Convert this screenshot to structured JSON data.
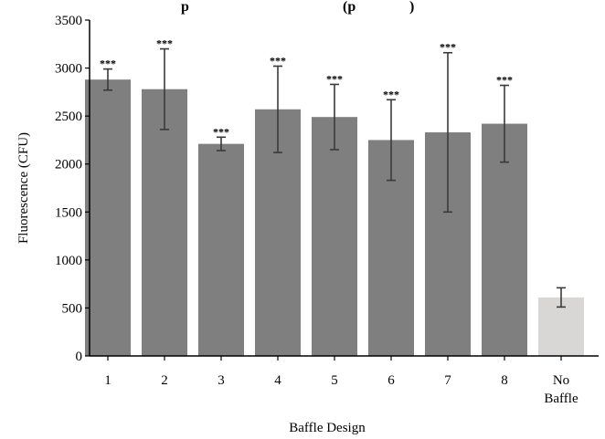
{
  "chart_data": {
    "type": "bar",
    "title_fragment_left": "p",
    "title_fragment_right": "(p",
    "title_fragment_tail": ")",
    "xlabel": "Baffle Design",
    "ylabel": "Fluorescence (CFU)",
    "ylim": [
      0,
      3500
    ],
    "yticks": [
      "0",
      "500",
      "1000",
      "1500",
      "2000",
      "2500",
      "3000",
      "3500"
    ],
    "grid": false,
    "legend": "none",
    "categories": [
      {
        "label": "1",
        "label2": ""
      },
      {
        "label": "2",
        "label2": ""
      },
      {
        "label": "3",
        "label2": ""
      },
      {
        "label": "4",
        "label2": ""
      },
      {
        "label": "5",
        "label2": ""
      },
      {
        "label": "6",
        "label2": ""
      },
      {
        "label": "7",
        "label2": ""
      },
      {
        "label": "8",
        "label2": ""
      },
      {
        "label": "No",
        "label2": "Baffle"
      }
    ],
    "values": [
      2880,
      2780,
      2210,
      2570,
      2490,
      2250,
      2330,
      2420,
      610
    ],
    "error": [
      110,
      420,
      70,
      450,
      340,
      420,
      830,
      400,
      100
    ],
    "significance": [
      "***",
      "***",
      "***",
      "***",
      "***",
      "***",
      "***",
      "***",
      ""
    ],
    "colors": {
      "treated": "#7f7f7f",
      "control": "#d9d6d6",
      "error_bar": "#3a3a3a",
      "axis": "#000000"
    }
  }
}
